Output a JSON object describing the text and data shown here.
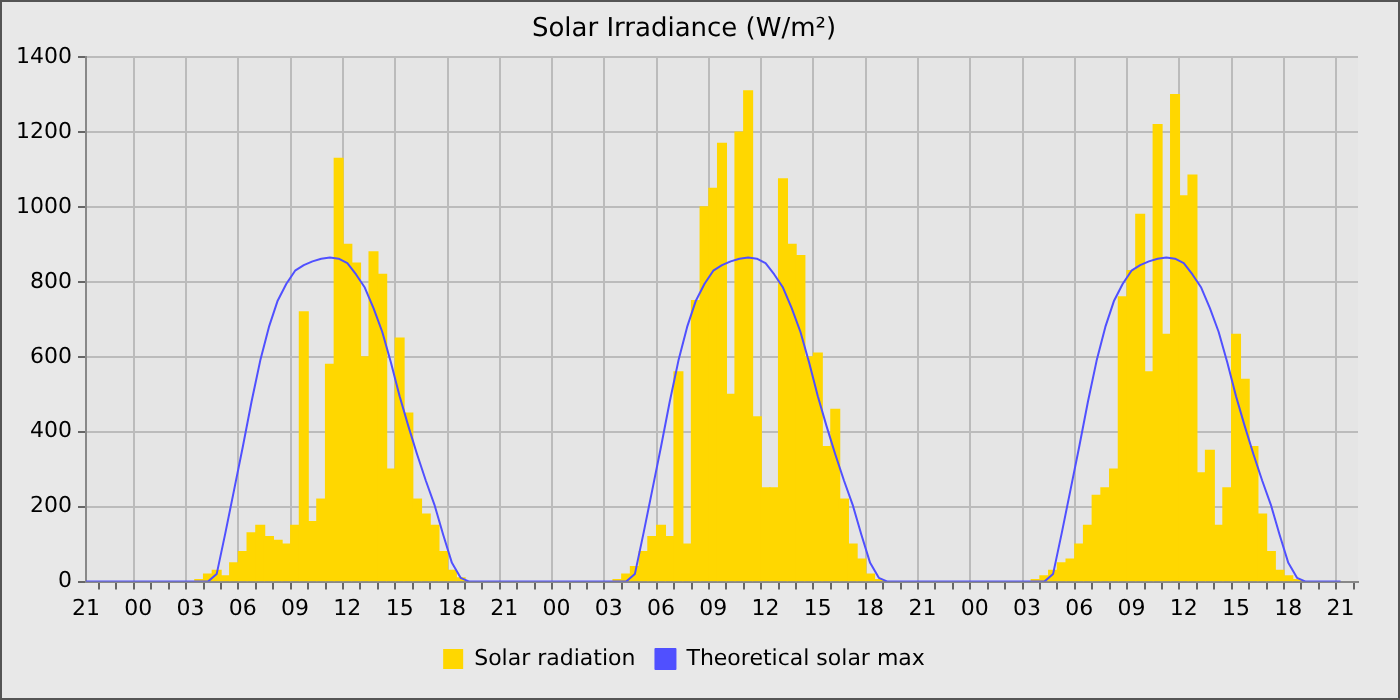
{
  "chart_data": {
    "type": "bar",
    "title": "Solar Irradiance (W/m²)",
    "categories": [
      "21",
      null,
      null,
      null,
      null,
      null,
      "00",
      null,
      null,
      null,
      null,
      null,
      "03",
      null,
      null,
      null,
      null,
      null,
      "06",
      null,
      null,
      null,
      null,
      null,
      "09",
      null,
      null,
      null,
      null,
      null,
      "12",
      null,
      null,
      null,
      null,
      null,
      "15",
      null,
      null,
      null,
      null,
      null,
      "18",
      null,
      null,
      null,
      null,
      null,
      "21",
      null,
      null,
      null,
      null,
      null,
      "00",
      null,
      null,
      null,
      null,
      null,
      "03",
      null,
      null,
      null,
      null,
      null,
      "06",
      null,
      null,
      null,
      null,
      null,
      "09",
      null,
      null,
      null,
      null,
      null,
      "12",
      null,
      null,
      null,
      null,
      null,
      "15",
      null,
      null,
      null,
      null,
      null,
      "18",
      null,
      null,
      null,
      null,
      null,
      "21",
      null,
      null,
      null,
      null,
      null,
      "00",
      null,
      null,
      null,
      null,
      null,
      "03",
      null,
      null,
      null,
      null,
      null,
      "06",
      null,
      null,
      null,
      null,
      null,
      "09",
      null,
      null,
      null,
      null,
      null,
      "12",
      null,
      null,
      null,
      null,
      null,
      "15",
      null,
      null,
      null,
      null,
      null,
      "18",
      null,
      null,
      null,
      null,
      null,
      "21",
      null,
      null
    ],
    "ylim": [
      0,
      1400
    ],
    "yticks": [
      0,
      200,
      400,
      600,
      800,
      1000,
      1200,
      1400
    ],
    "grid": true,
    "legend": "bottom",
    "series": [
      {
        "name": "Solar radiation",
        "color": "#ffd700",
        "values": [
          null,
          null,
          null,
          null,
          null,
          null,
          null,
          null,
          null,
          null,
          null,
          null,
          null,
          5,
          20,
          30,
          15,
          50,
          80,
          130,
          150,
          120,
          110,
          100,
          150,
          720,
          160,
          220,
          580,
          1130,
          900,
          850,
          600,
          880,
          820,
          300,
          650,
          450,
          220,
          180,
          150,
          80,
          30,
          10,
          null,
          null,
          null,
          null,
          null,
          null,
          null,
          null,
          null,
          null,
          null,
          null,
          null,
          null,
          null,
          null,
          null,
          5,
          20,
          40,
          80,
          120,
          150,
          120,
          560,
          100,
          750,
          1000,
          1050,
          1170,
          500,
          1200,
          1310,
          440,
          250,
          250,
          1075,
          900,
          870,
          600,
          610,
          360,
          460,
          220,
          100,
          60,
          20,
          5,
          null,
          null,
          null,
          null,
          null,
          null,
          null,
          null,
          null,
          null,
          null,
          null,
          null,
          null,
          null,
          null,
          null,
          5,
          15,
          30,
          50,
          60,
          100,
          150,
          230,
          250,
          300,
          760,
          830,
          980,
          560,
          1220,
          660,
          1300,
          1030,
          1085,
          290,
          350,
          150,
          250,
          660,
          540,
          360,
          180,
          80,
          30,
          15,
          5,
          null,
          null,
          null,
          null,
          null,
          null,
          null
        ]
      },
      {
        "name": "Theoretical solar max",
        "type": "line",
        "color": "#5050ff",
        "marker": "none",
        "line_style": "solid",
        "values": [
          0,
          0,
          0,
          0,
          0,
          0,
          0,
          0,
          0,
          0,
          0,
          0,
          0,
          0,
          0,
          20,
          130,
          245,
          360,
          480,
          590,
          680,
          750,
          795,
          830,
          845,
          855,
          862,
          865,
          862,
          850,
          820,
          785,
          730,
          667,
          585,
          495,
          415,
          340,
          270,
          205,
          125,
          50,
          10,
          0,
          0,
          0,
          0,
          0,
          0,
          0,
          0,
          0,
          0,
          0,
          0,
          0,
          0,
          0,
          0,
          0,
          0,
          0,
          20,
          130,
          245,
          360,
          480,
          590,
          680,
          750,
          795,
          830,
          845,
          855,
          862,
          865,
          862,
          850,
          820,
          785,
          730,
          667,
          585,
          495,
          415,
          340,
          270,
          205,
          125,
          50,
          10,
          0,
          0,
          0,
          0,
          0,
          0,
          0,
          0,
          0,
          0,
          0,
          0,
          0,
          0,
          0,
          0,
          0,
          0,
          0,
          20,
          130,
          245,
          360,
          480,
          590,
          680,
          750,
          795,
          830,
          845,
          855,
          862,
          865,
          862,
          850,
          820,
          785,
          730,
          667,
          585,
          495,
          415,
          340,
          270,
          205,
          125,
          50,
          10,
          0,
          0,
          0,
          0,
          0,
          null,
          null
        ]
      }
    ]
  }
}
